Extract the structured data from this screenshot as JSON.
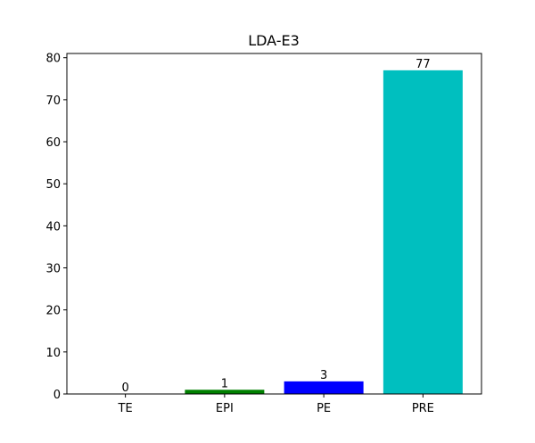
{
  "chart_data": {
    "type": "bar",
    "title": "LDA-E3",
    "xlabel": "",
    "ylabel": "",
    "categories": [
      "TE",
      "EPI",
      "PE",
      "PRE"
    ],
    "values": [
      0,
      1,
      3,
      77
    ],
    "colors": [
      "#ff0000",
      "#008000",
      "#0000ff",
      "#00bfbf"
    ],
    "ylim": [
      0,
      81
    ],
    "yticks": [
      0,
      10,
      20,
      30,
      40,
      50,
      60,
      70,
      80
    ],
    "grid": false,
    "legend": "none"
  }
}
